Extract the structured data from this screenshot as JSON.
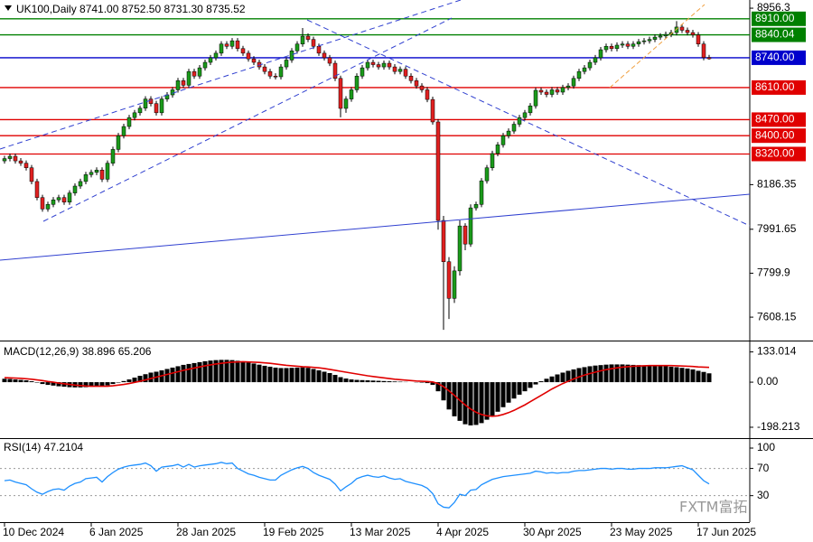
{
  "watermark": "FXTM富拓",
  "chart_data": [
    {
      "type": "candlestick",
      "title": "UK100,Daily  8741.00 8752.50 8731.30 8735.52",
      "categories": [
        "10 Dec 2024",
        null,
        null,
        null,
        null,
        null,
        null,
        null,
        null,
        null,
        null,
        null,
        null,
        null,
        null,
        null,
        "6 Jan 2025",
        null,
        null,
        null,
        null,
        null,
        null,
        null,
        null,
        null,
        null,
        null,
        null,
        null,
        null,
        null,
        "28 Jan 2025",
        null,
        null,
        null,
        null,
        null,
        null,
        null,
        null,
        null,
        null,
        null,
        null,
        null,
        null,
        null,
        "19 Feb 2025",
        null,
        null,
        null,
        null,
        null,
        null,
        null,
        null,
        null,
        null,
        null,
        null,
        null,
        null,
        null,
        "13 Mar 2025",
        null,
        null,
        null,
        null,
        null,
        null,
        null,
        null,
        null,
        null,
        null,
        null,
        null,
        null,
        null,
        "4 Apr 2025",
        null,
        null,
        null,
        null,
        null,
        null,
        null,
        null,
        null,
        null,
        null,
        null,
        null,
        null,
        null,
        "30 Apr 2025",
        null,
        null,
        null,
        null,
        null,
        null,
        null,
        null,
        null,
        null,
        null,
        null,
        null,
        null,
        null,
        "23 May 2025",
        null,
        null,
        null,
        null,
        null,
        null,
        null,
        null,
        null,
        null,
        null,
        null,
        null,
        null,
        null,
        "17 Jun 2025",
        null,
        null
      ],
      "open": [
        8290,
        8300,
        8310,
        8290,
        8280,
        8260,
        8200,
        8130,
        8080,
        8100,
        8120,
        8130,
        8110,
        8150,
        8180,
        8200,
        8230,
        8240,
        8250,
        8210,
        8280,
        8340,
        8400,
        8440,
        8479,
        8500,
        8520,
        8560,
        8540,
        8500,
        8560,
        8578,
        8600,
        8640,
        8620,
        8680,
        8660,
        8696,
        8720,
        8740,
        8760,
        8800,
        8790,
        8814,
        8780,
        8760,
        8735,
        8720,
        8700,
        8680,
        8660,
        8657,
        8700,
        8730,
        8770,
        8800,
        8834,
        8820,
        8790,
        8760,
        8740,
        8716,
        8650,
        8519,
        8560,
        8600,
        8660,
        8696,
        8720,
        8710,
        8700,
        8716,
        8700,
        8680,
        8690,
        8660,
        8640,
        8617,
        8600,
        8558,
        8460,
        8030,
        7850,
        7690,
        7810,
        8006,
        7927,
        8085,
        8100,
        8203,
        8260,
        8322,
        8360,
        8400,
        8420,
        8450,
        8479,
        8500,
        8530,
        8598,
        8590,
        8580,
        8600,
        8590,
        8610,
        8617,
        8650,
        8680,
        8696,
        8720,
        8740,
        8775,
        8790,
        8780,
        8795,
        8800,
        8790,
        8800,
        8810,
        8814,
        8820,
        8830,
        8835,
        8842,
        8850,
        8874,
        8860,
        8850,
        8840,
        8800,
        8741
      ],
      "high": [
        8312,
        8322,
        8322,
        8302,
        8292,
        8272,
        8212,
        8142,
        8112,
        8132,
        8142,
        8142,
        8162,
        8192,
        8212,
        8242,
        8252,
        8262,
        8262,
        8292,
        8352,
        8412,
        8452,
        8491,
        8512,
        8532,
        8572,
        8572,
        8552,
        8572,
        8590,
        8612,
        8652,
        8652,
        8692,
        8692,
        8708,
        8732,
        8752,
        8772,
        8812,
        8812,
        8826,
        8826,
        8792,
        8772,
        8747,
        8732,
        8712,
        8692,
        8672,
        8712,
        8742,
        8782,
        8812,
        8870,
        8846,
        8832,
        8802,
        8772,
        8752,
        8728,
        8662,
        8572,
        8612,
        8672,
        8708,
        8732,
        8732,
        8722,
        8728,
        8728,
        8712,
        8702,
        8702,
        8672,
        8652,
        8629,
        8612,
        8570,
        8472,
        8050,
        7870,
        7830,
        8030,
        8018,
        8100,
        8112,
        8215,
        8272,
        8334,
        8372,
        8412,
        8432,
        8462,
        8491,
        8512,
        8542,
        8610,
        8610,
        8602,
        8612,
        8612,
        8622,
        8629,
        8662,
        8692,
        8708,
        8732,
        8752,
        8787,
        8802,
        8802,
        8807,
        8812,
        8812,
        8812,
        8822,
        8826,
        8832,
        8842,
        8847,
        8854,
        8862,
        8900,
        8886,
        8872,
        8862,
        8852,
        8812,
        8752.5
      ],
      "low": [
        8278,
        8288,
        8278,
        8268,
        8248,
        8188,
        8118,
        8068,
        8068,
        8088,
        8108,
        8098,
        8098,
        8138,
        8168,
        8188,
        8218,
        8228,
        8198,
        8198,
        8268,
        8328,
        8388,
        8428,
        8467,
        8488,
        8508,
        8528,
        8488,
        8488,
        8548,
        8566,
        8588,
        8608,
        8608,
        8648,
        8648,
        8684,
        8708,
        8728,
        8748,
        8778,
        8778,
        8768,
        8748,
        8723,
        8708,
        8688,
        8668,
        8648,
        8645,
        8645,
        8688,
        8718,
        8758,
        8788,
        8808,
        8778,
        8748,
        8728,
        8704,
        8638,
        8480,
        8500,
        8548,
        8588,
        8648,
        8684,
        8698,
        8688,
        8688,
        8688,
        8668,
        8668,
        8648,
        8628,
        8605,
        8588,
        8546,
        8448,
        7990,
        7553,
        7600,
        7670,
        7790,
        7900,
        7915,
        8073,
        8088,
        8191,
        8248,
        8310,
        8348,
        8388,
        8408,
        8438,
        8467,
        8488,
        8518,
        8578,
        8568,
        8568,
        8578,
        8578,
        8598,
        8605,
        8638,
        8668,
        8684,
        8708,
        8728,
        8763,
        8768,
        8768,
        8783,
        8778,
        8778,
        8788,
        8798,
        8802,
        8808,
        8818,
        8823,
        8830,
        8838,
        8848,
        8838,
        8828,
        8788,
        8729,
        8731.3
      ],
      "close": [
        8300,
        8310,
        8290,
        8280,
        8260,
        8200,
        8130,
        8080,
        8100,
        8120,
        8130,
        8110,
        8150,
        8180,
        8200,
        8230,
        8240,
        8250,
        8210,
        8280,
        8340,
        8400,
        8440,
        8479,
        8500,
        8520,
        8560,
        8540,
        8500,
        8560,
        8578,
        8600,
        8640,
        8620,
        8680,
        8660,
        8696,
        8720,
        8740,
        8760,
        8800,
        8790,
        8814,
        8780,
        8760,
        8735,
        8720,
        8700,
        8680,
        8660,
        8657,
        8700,
        8730,
        8770,
        8800,
        8834,
        8820,
        8790,
        8760,
        8740,
        8716,
        8650,
        8519,
        8560,
        8600,
        8660,
        8696,
        8720,
        8710,
        8700,
        8716,
        8700,
        8680,
        8690,
        8660,
        8640,
        8617,
        8600,
        8558,
        8460,
        8030,
        7850,
        7690,
        7810,
        8006,
        7927,
        8085,
        8100,
        8203,
        8260,
        8322,
        8360,
        8400,
        8420,
        8450,
        8479,
        8500,
        8530,
        8598,
        8590,
        8580,
        8600,
        8590,
        8610,
        8617,
        8650,
        8680,
        8696,
        8720,
        8740,
        8775,
        8790,
        8780,
        8795,
        8800,
        8790,
        8800,
        8810,
        8814,
        8820,
        8830,
        8835,
        8842,
        8850,
        8874,
        8860,
        8850,
        8840,
        8800,
        8741,
        8735.52
      ],
      "up_color": "#1a9a1a",
      "down_color": "#e02020",
      "ylim": [
        7506,
        8992
      ],
      "yticks": [
        8956.3,
        8186.35,
        7991.65,
        7799.9,
        7608.15
      ],
      "levels": [
        {
          "value": 8910,
          "label": "8910.00",
          "color": "#008000"
        },
        {
          "value": 8840.04,
          "color": "#008000"
        },
        {
          "value": 8740,
          "label": "8740.00",
          "color": "#0000cc"
        },
        {
          "value": 8610,
          "label": "8610.00",
          "color": "#e00000"
        },
        {
          "value": 8470,
          "label": "8470.00",
          "color": "#e00000"
        },
        {
          "value": 8400,
          "label": "8400.00",
          "color": "#e00000"
        },
        {
          "value": 8320,
          "label": "8320.00",
          "color": "#e00000"
        }
      ]
    },
    {
      "type": "macd",
      "title": "MACD(12,26,9) 38.896 65.206",
      "values": [
        15,
        14,
        12,
        10,
        8,
        4,
        -2,
        -8,
        -12,
        -15,
        -18,
        -20,
        -22,
        -23,
        -23,
        -22,
        -20,
        -18,
        -17,
        -14,
        -8,
        -2,
        5,
        12,
        20,
        28,
        35,
        42,
        46,
        52,
        58,
        64,
        70,
        76,
        80,
        84,
        88,
        92,
        95,
        97,
        98,
        98,
        97,
        94,
        90,
        86,
        82,
        77,
        72,
        68,
        64,
        62,
        62,
        63,
        64,
        65,
        63,
        58,
        52,
        46,
        40,
        32,
        22,
        16,
        12,
        10,
        9,
        8,
        7,
        6,
        5,
        4,
        3,
        2,
        1,
        0,
        -1,
        -2,
        -4,
        -12,
        -40,
        -80,
        -120,
        -150,
        -170,
        -185,
        -190,
        -188,
        -180,
        -165,
        -148,
        -130,
        -110,
        -90,
        -72,
        -55,
        -40,
        -25,
        -10,
        4,
        15,
        25,
        34,
        42,
        50,
        56,
        62,
        66,
        70,
        73,
        75,
        77,
        78,
        78,
        78,
        77,
        76,
        75,
        74,
        73,
        72,
        71,
        70,
        68,
        66,
        63,
        60,
        56,
        50,
        45,
        38.896
      ],
      "signal": [
        20,
        19,
        18,
        17,
        15,
        13,
        10,
        7,
        3,
        0,
        -4,
        -7,
        -10,
        -13,
        -15,
        -17,
        -18,
        -18,
        -18,
        -18,
        -16,
        -13,
        -10,
        -6,
        -1,
        4,
        10,
        16,
        22,
        28,
        34,
        40,
        46,
        52,
        57,
        62,
        67,
        72,
        76,
        80,
        83,
        86,
        88,
        89,
        90,
        89,
        88,
        87,
        85,
        83,
        80,
        77,
        74,
        72,
        70,
        68,
        67,
        65,
        63,
        60,
        56,
        52,
        48,
        44,
        40,
        36,
        32,
        28,
        25,
        22,
        19,
        16,
        13,
        11,
        9,
        7,
        5,
        4,
        3,
        1,
        -6,
        -20,
        -38,
        -58,
        -80,
        -100,
        -118,
        -132,
        -142,
        -148,
        -150,
        -148,
        -142,
        -134,
        -124,
        -112,
        -100,
        -86,
        -72,
        -58,
        -44,
        -30,
        -18,
        -6,
        4,
        14,
        23,
        31,
        38,
        44,
        50,
        55,
        59,
        63,
        66,
        68,
        70,
        71,
        72,
        73,
        73,
        73,
        73,
        73,
        72,
        71,
        70,
        69,
        67,
        66,
        65.206
      ],
      "color": "#000000",
      "signal_color": "#e00000",
      "ylim": [
        -242,
        175
      ],
      "yticks": [
        133.014,
        {
          "value": 0,
          "label": "0.00"
        },
        -198.213
      ]
    },
    {
      "type": "line",
      "title": "RSI(14) 47.2104",
      "values": [
        52,
        53,
        50,
        48,
        46,
        40,
        35,
        32,
        36,
        39,
        40,
        38,
        44,
        48,
        50,
        55,
        56,
        57,
        50,
        58,
        64,
        69,
        72,
        74,
        75,
        76,
        78,
        74,
        66,
        72,
        73,
        74,
        76,
        72,
        76,
        72,
        74,
        75,
        76,
        77,
        79,
        77,
        78,
        70,
        66,
        62,
        60,
        57,
        55,
        53,
        53,
        60,
        64,
        68,
        71,
        73,
        70,
        64,
        60,
        57,
        54,
        47,
        37,
        43,
        48,
        55,
        58,
        60,
        58,
        57,
        59,
        56,
        54,
        55,
        51,
        49,
        47,
        45,
        41,
        33,
        18,
        13,
        12,
        20,
        32,
        30,
        38,
        39,
        46,
        50,
        54,
        56,
        58,
        59,
        60,
        61,
        62,
        63,
        66,
        65,
        63,
        64,
        63,
        64,
        64,
        66,
        67,
        67,
        68,
        69,
        70,
        70,
        69,
        70,
        70,
        69,
        69,
        70,
        70,
        70,
        71,
        71,
        71,
        72,
        73,
        74,
        71,
        68,
        60,
        52,
        47.2104
      ],
      "color": "#1e90ff",
      "ylim": [
        -9,
        112
      ],
      "yticks": [
        100,
        70,
        30
      ],
      "levels": [
        70,
        30
      ]
    }
  ]
}
